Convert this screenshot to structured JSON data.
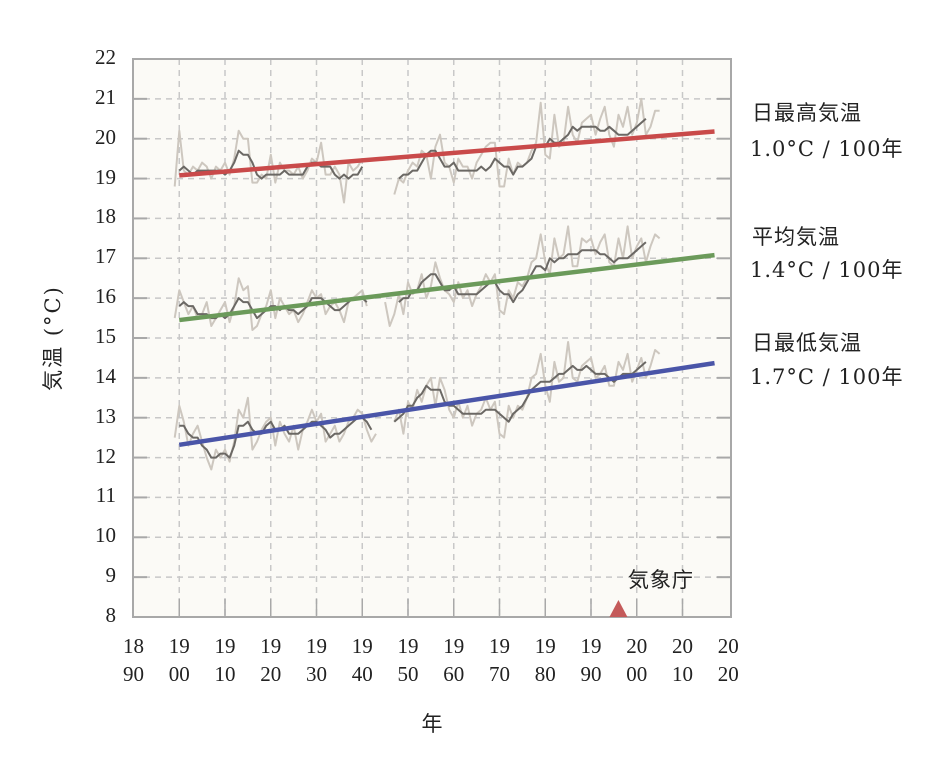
{
  "chart_data": {
    "type": "line",
    "title": "",
    "xlabel": "年",
    "ylabel": "気温 (°C)",
    "xlim": [
      1890,
      2020
    ],
    "ylim": [
      8,
      22
    ],
    "grid": true,
    "x_ticks": [
      1890,
      1900,
      1910,
      1920,
      1930,
      1940,
      1950,
      1960,
      1970,
      1980,
      1990,
      2000,
      2010,
      2020
    ],
    "x_tick_labels": [
      [
        "18",
        "90"
      ],
      [
        "19",
        "00"
      ],
      [
        "19",
        "10"
      ],
      [
        "19",
        "20"
      ],
      [
        "19",
        "30"
      ],
      [
        "19",
        "40"
      ],
      [
        "19",
        "50"
      ],
      [
        "19",
        "60"
      ],
      [
        "19",
        "70"
      ],
      [
        "19",
        "80"
      ],
      [
        "19",
        "90"
      ],
      [
        "20",
        "00"
      ],
      [
        "20",
        "10"
      ],
      [
        "20",
        "20"
      ]
    ],
    "y_ticks": [
      8,
      9,
      10,
      11,
      12,
      13,
      14,
      15,
      16,
      17,
      18,
      19,
      20,
      21,
      22
    ],
    "credit": "気象庁",
    "marker": {
      "type": "triangle",
      "x": 1996,
      "color": "#c45a5a"
    },
    "series": [
      {
        "name": "日最高気温",
        "trend_label": "1.0°C / 100年",
        "trend_color": "#c94a4a",
        "trend": {
          "x": [
            1900,
            2017
          ],
          "y": [
            19.08,
            20.18
          ]
        },
        "x_start": 1899,
        "annual": [
          18.8,
          20.2,
          19.2,
          19.1,
          19.3,
          19.2,
          19.4,
          19.3,
          19.0,
          19.3,
          19.2,
          19.4,
          19.1,
          19.5,
          20.2,
          20.0,
          20.0,
          18.9,
          18.9,
          19.1,
          19.0,
          19.6,
          18.9,
          19.4,
          19.2,
          19.2,
          19.1,
          19.3,
          19.0,
          19.2,
          19.5,
          19.4,
          19.9,
          19.1,
          19.1,
          19.3,
          19.1,
          18.4,
          19.4,
          19.2,
          19.3,
          19.5,
          null,
          null,
          null,
          null,
          null,
          null,
          18.6,
          19.0,
          18.9,
          19.2,
          19.4,
          19.3,
          19.7,
          19.6,
          19.0,
          19.8,
          20.1,
          19.4,
          19.3,
          18.9,
          19.5,
          19.3,
          19.3,
          19.0,
          19.4,
          19.6,
          19.8,
          19.9,
          19.9,
          18.8,
          18.8,
          19.5,
          19.1,
          19.4,
          19.3,
          19.4,
          19.7,
          19.9,
          20.9,
          19.6,
          19.5,
          20.6,
          19.8,
          19.9,
          20.8,
          20.1,
          19.9,
          20.4,
          20.5,
          20.6,
          20.1,
          20.5,
          20.8,
          20.1,
          19.8,
          20.6,
          20.3,
          20.8,
          20.1,
          20.4,
          21.0,
          20.1,
          20.3,
          20.7,
          20.7
        ],
        "moving_avg": [
          null,
          19.2,
          19.3,
          19.2,
          19.1,
          19.2,
          19.2,
          19.2,
          19.2,
          19.2,
          19.2,
          19.1,
          19.2,
          19.4,
          19.7,
          19.6,
          19.6,
          19.4,
          19.1,
          19.0,
          19.1,
          19.1,
          19.1,
          19.1,
          19.2,
          19.1,
          19.1,
          19.1,
          19.1,
          19.3,
          19.4,
          19.4,
          19.3,
          19.3,
          19.3,
          19.1,
          19.0,
          19.1,
          19.0,
          19.1,
          19.1,
          19.3,
          null,
          null,
          null,
          null,
          null,
          null,
          null,
          19.0,
          19.1,
          19.1,
          19.2,
          19.2,
          19.4,
          19.6,
          19.7,
          19.7,
          19.5,
          19.3,
          19.3,
          19.4,
          19.2,
          19.2,
          19.2,
          19.2,
          19.2,
          19.3,
          19.2,
          19.3,
          19.5,
          19.4,
          19.3,
          19.3,
          19.1,
          19.3,
          19.3,
          19.4,
          19.5,
          19.8,
          19.8,
          19.8,
          20.0,
          19.9,
          19.9,
          20.0,
          20.1,
          20.3,
          20.2,
          20.3,
          20.3,
          20.3,
          20.3,
          20.2,
          20.2,
          20.3,
          20.2,
          20.1,
          20.1,
          20.1,
          20.2,
          20.3,
          20.4,
          20.5,
          null,
          null
        ],
        "label_position": "right"
      },
      {
        "name": "平均気温",
        "trend_label": "1.4°C / 100年",
        "trend_color": "#6b9a5a",
        "trend": {
          "x": [
            1900,
            2017
          ],
          "y": [
            15.45,
            17.08
          ]
        },
        "x_start": 1899,
        "annual": [
          15.5,
          16.2,
          15.9,
          15.6,
          15.8,
          15.5,
          15.6,
          15.9,
          15.3,
          15.5,
          15.7,
          15.9,
          15.4,
          15.8,
          16.5,
          16.2,
          16.3,
          15.2,
          15.3,
          15.6,
          15.8,
          16.2,
          15.5,
          16.0,
          15.8,
          15.6,
          15.7,
          15.4,
          15.6,
          15.9,
          16.2,
          16.0,
          16.1,
          15.6,
          15.8,
          15.9,
          15.7,
          15.4,
          15.9,
          16.0,
          16.1,
          16.2,
          15.8,
          null,
          null,
          null,
          15.9,
          15.3,
          15.6,
          16.1,
          15.6,
          16.4,
          16.1,
          16.2,
          16.6,
          16.0,
          16.3,
          16.9,
          16.5,
          16.2,
          16.1,
          15.9,
          16.4,
          16.0,
          16.2,
          15.8,
          16.1,
          16.3,
          16.6,
          16.4,
          16.6,
          15.7,
          15.6,
          16.2,
          16.0,
          16.4,
          16.3,
          16.5,
          16.9,
          17.0,
          17.6,
          16.9,
          16.6,
          17.5,
          17.0,
          17.1,
          17.8,
          16.8,
          16.8,
          17.5,
          17.4,
          17.5,
          17.1,
          17.4,
          17.6,
          16.9,
          16.8,
          17.5,
          17.0,
          17.8,
          17.0,
          17.3,
          17.5,
          16.9,
          17.3,
          17.6,
          17.5
        ],
        "moving_avg": [
          null,
          15.8,
          15.9,
          15.8,
          15.8,
          15.6,
          15.6,
          15.6,
          15.5,
          15.5,
          15.6,
          15.5,
          15.6,
          15.8,
          16.0,
          15.9,
          15.9,
          15.7,
          15.5,
          15.6,
          15.7,
          15.8,
          15.8,
          15.7,
          15.8,
          15.7,
          15.7,
          15.6,
          15.7,
          15.8,
          16.0,
          16.0,
          16.0,
          15.9,
          15.8,
          15.7,
          15.7,
          15.8,
          15.9,
          16.0,
          16.0,
          16.0,
          15.9,
          null,
          null,
          null,
          null,
          null,
          null,
          15.9,
          16.0,
          16.0,
          16.2,
          16.2,
          16.4,
          16.5,
          16.6,
          16.6,
          16.4,
          16.2,
          16.2,
          16.3,
          16.1,
          16.1,
          16.1,
          16.1,
          16.1,
          16.2,
          16.3,
          16.4,
          16.4,
          16.2,
          16.1,
          16.1,
          15.9,
          16.1,
          16.2,
          16.4,
          16.6,
          16.8,
          16.8,
          16.7,
          17.0,
          16.9,
          17.0,
          17.0,
          17.1,
          17.1,
          17.1,
          17.2,
          17.2,
          17.2,
          17.2,
          17.1,
          17.1,
          17.0,
          16.9,
          17.0,
          17.0,
          17.0,
          17.1,
          17.2,
          17.3,
          17.4,
          null,
          null
        ],
        "label_position": "right"
      },
      {
        "name": "日最低気温",
        "trend_label": "1.7°C / 100年",
        "trend_color": "#4a55a8",
        "trend": {
          "x": [
            1900,
            2017
          ],
          "y": [
            12.32,
            14.37
          ]
        },
        "x_start": 1899,
        "annual": [
          12.5,
          13.3,
          12.9,
          12.3,
          12.6,
          12.8,
          12.4,
          12.0,
          11.7,
          12.2,
          12.0,
          12.2,
          11.9,
          12.4,
          13.2,
          13.0,
          13.5,
          12.2,
          12.4,
          12.7,
          12.9,
          13.0,
          12.3,
          12.9,
          12.6,
          12.4,
          12.8,
          12.2,
          12.7,
          12.9,
          13.2,
          12.9,
          13.1,
          12.4,
          12.6,
          12.8,
          12.4,
          12.6,
          12.9,
          13.0,
          13.2,
          13.1,
          12.7,
          12.4,
          12.6,
          null,
          null,
          null,
          12.9,
          13.2,
          12.6,
          13.4,
          13.2,
          13.7,
          13.4,
          13.8,
          14.0,
          13.3,
          14.0,
          13.7,
          13.2,
          13.0,
          13.4,
          13.0,
          13.3,
          12.8,
          13.1,
          13.2,
          13.5,
          13.2,
          13.4,
          12.6,
          12.5,
          13.3,
          13.0,
          13.3,
          13.2,
          13.5,
          14.0,
          14.1,
          14.6,
          13.8,
          13.4,
          14.4,
          13.9,
          14.0,
          14.9,
          14.0,
          13.9,
          14.3,
          14.4,
          14.5,
          14.0,
          14.1,
          14.3,
          13.8,
          13.8,
          14.4,
          14.2,
          14.6,
          13.9,
          14.2,
          14.5,
          14.0,
          14.3,
          14.7,
          14.6
        ],
        "moving_avg": [
          null,
          12.8,
          12.8,
          12.6,
          12.5,
          12.5,
          12.3,
          12.2,
          12.0,
          12.0,
          12.1,
          12.1,
          12.0,
          12.3,
          12.8,
          12.8,
          12.9,
          12.7,
          12.6,
          12.6,
          12.8,
          12.9,
          12.7,
          12.7,
          12.8,
          12.6,
          12.6,
          12.6,
          12.7,
          12.8,
          12.9,
          12.9,
          12.8,
          12.7,
          12.5,
          12.6,
          12.6,
          12.7,
          12.8,
          12.9,
          13.0,
          13.0,
          12.9,
          12.7,
          null,
          null,
          null,
          null,
          12.9,
          13.0,
          13.1,
          13.3,
          13.3,
          13.5,
          13.6,
          13.8,
          13.7,
          13.7,
          13.7,
          13.4,
          13.3,
          13.3,
          13.2,
          13.1,
          13.1,
          13.1,
          13.1,
          13.1,
          13.2,
          13.2,
          13.2,
          13.1,
          13.0,
          12.9,
          13.1,
          13.2,
          13.3,
          13.5,
          13.7,
          13.8,
          13.9,
          13.9,
          13.9,
          14.0,
          14.1,
          14.1,
          14.2,
          14.3,
          14.2,
          14.2,
          14.3,
          14.2,
          14.1,
          14.1,
          14.1,
          14.0,
          13.9,
          14.0,
          14.1,
          14.1,
          14.1,
          14.2,
          14.3,
          14.4,
          null,
          null
        ],
        "label_position": "right"
      }
    ]
  },
  "styles": {
    "plot_bg": "#fbfaf6",
    "axis_color": "#a8a8a8",
    "grid_color": "#c8c8c8",
    "annual_color": "#cdc7bf",
    "moving_avg_color": "#6b6864"
  }
}
